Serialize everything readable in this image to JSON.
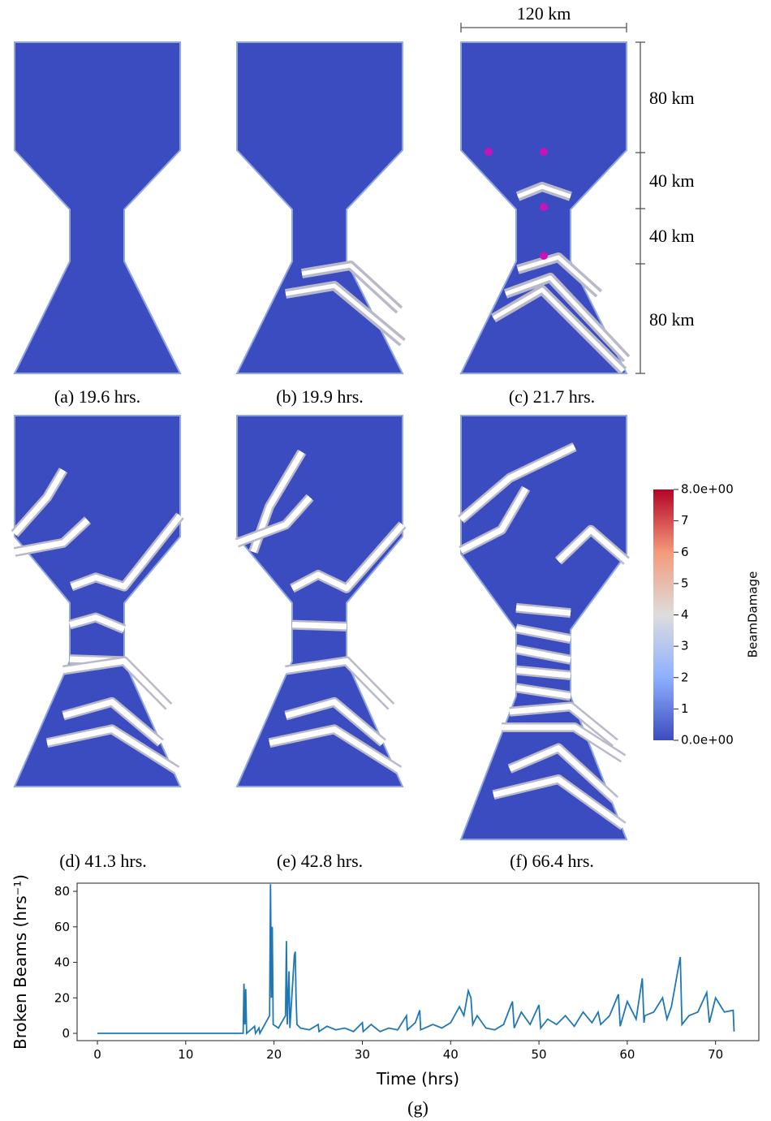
{
  "captions": [
    "(a) 19.6 hrs.",
    "(b) 19.9 hrs.",
    "(c) 21.7 hrs.",
    "(d) 41.3 hrs.",
    "(e) 42.8 hrs.",
    "(f) 66.4 hrs.",
    "(g)"
  ],
  "dimensions": {
    "width": "120 km",
    "heights": [
      "80 km",
      "40 km",
      "40 km",
      "80 km"
    ]
  },
  "colorbar": {
    "label": "BeamDamage",
    "range": [
      0,
      8
    ],
    "ticks": [
      {
        "value": 8,
        "label": "8.0e+00"
      },
      7,
      6,
      5,
      4,
      3,
      2,
      1,
      {
        "value": 0,
        "label": "0.0e+00"
      }
    ]
  },
  "chart_data": {
    "type": "line",
    "xlabel": "Time (hrs)",
    "ylabel": "Broken Beams (hrs⁻¹)",
    "xlim": [
      -2.3,
      74.9
    ],
    "ylim": [
      -4.1,
      84.6
    ],
    "xticks": [
      0,
      10,
      20,
      30,
      40,
      50,
      60,
      70
    ],
    "yticks": [
      0,
      20,
      40,
      60,
      80
    ],
    "x": [
      0,
      16.5,
      16.6,
      16.7,
      16.8,
      16.9,
      17.8,
      17.9,
      18.3,
      18.4,
      19.5,
      19.6,
      19.7,
      19.8,
      19.9,
      20.5,
      21.3,
      21.4,
      21.5,
      21.7,
      21.8,
      22.3,
      22.4,
      22.5,
      22.6,
      23,
      24,
      25,
      25.1,
      26,
      27,
      28,
      29,
      30,
      30.1,
      31,
      32,
      33,
      34,
      35,
      35.1,
      36,
      36.5,
      36.6,
      38,
      39,
      40,
      41,
      41.5,
      42,
      42.3,
      42.5,
      43,
      44,
      45,
      46,
      47,
      47.2,
      48,
      49,
      50,
      50.2,
      51,
      52,
      53,
      54,
      55,
      56,
      56.7,
      57,
      58,
      59,
      59.2,
      60,
      61,
      61.7,
      61.9,
      62,
      63,
      64,
      64.5,
      65,
      66,
      66.2,
      67,
      68,
      69,
      69.3,
      70,
      71,
      72,
      72.1
    ],
    "series": [
      {
        "name": "Broken Beams",
        "color": "#1f77b4",
        "values": [
          0,
          0,
          28,
          5,
          25,
          0,
          4,
          0,
          3,
          0,
          10,
          84,
          20,
          60,
          5,
          3,
          10,
          52,
          5,
          35,
          3,
          44,
          46,
          20,
          5,
          3,
          2,
          5,
          1,
          4,
          2,
          3,
          1,
          6,
          1,
          5,
          1,
          3,
          2,
          10,
          2,
          6,
          13,
          2,
          5,
          3,
          6,
          15,
          10,
          24,
          20,
          5,
          10,
          3,
          2,
          5,
          18,
          3,
          12,
          5,
          16,
          3,
          8,
          5,
          10,
          4,
          12,
          6,
          12,
          5,
          10,
          22,
          4,
          18,
          8,
          31,
          6,
          10,
          12,
          20,
          8,
          15,
          43,
          5,
          10,
          12,
          23,
          6,
          20,
          12,
          13,
          1
        ]
      }
    ]
  }
}
